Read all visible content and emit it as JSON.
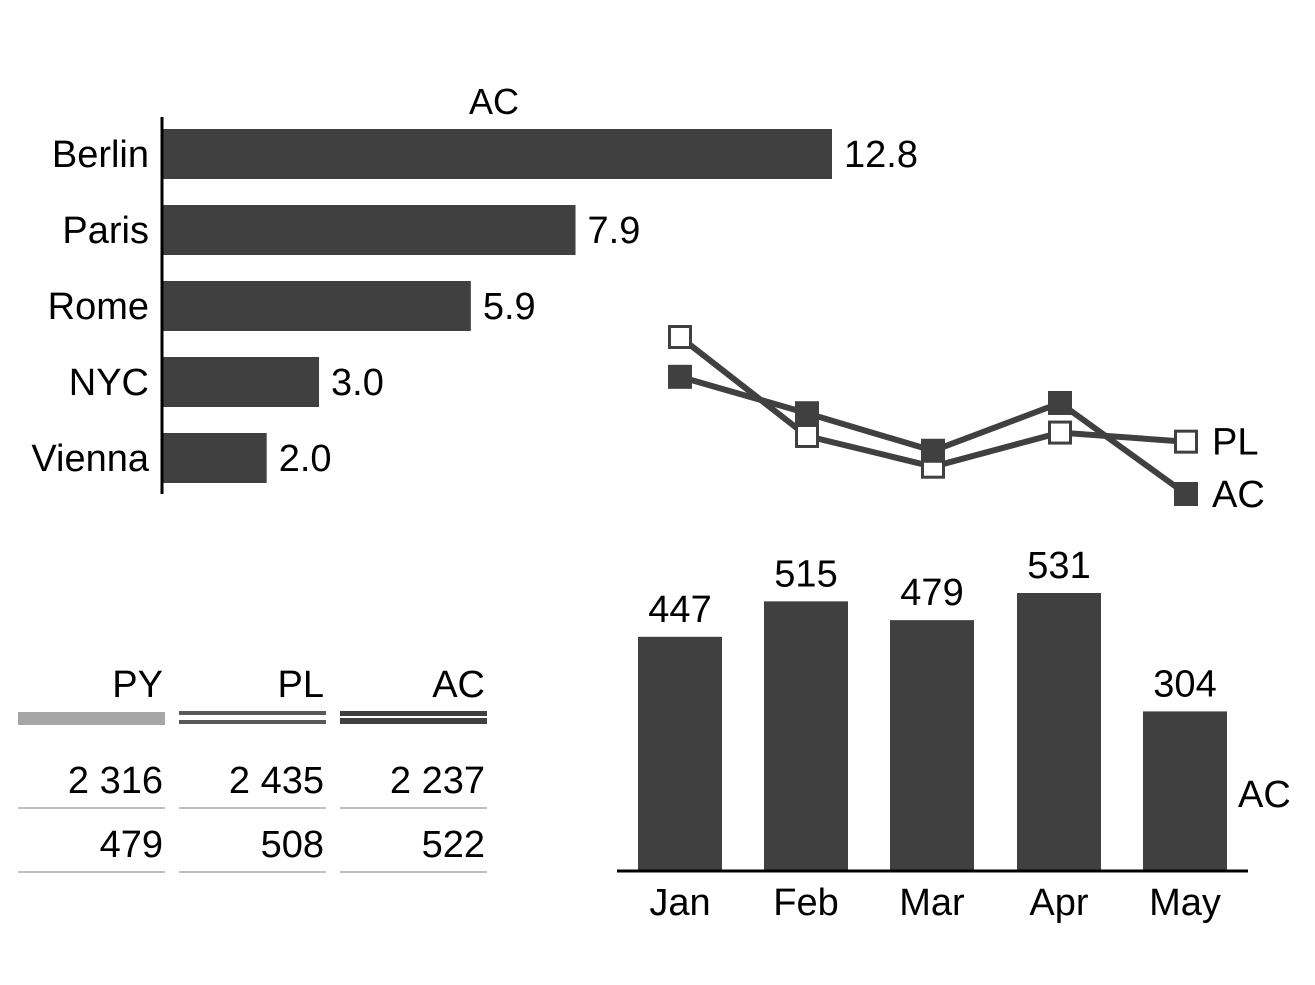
{
  "colors": {
    "bar": "#404040",
    "text": "#000000",
    "py_header_line": "#a6a6a6",
    "pl_header_line": "#595959",
    "ac_header_line": "#404040",
    "row_divider": "#bfbfbf",
    "axis": "#000000",
    "marker_fill_plan": "#ffffff"
  },
  "chart_data": [
    {
      "type": "bar",
      "orientation": "horizontal",
      "title": "AC",
      "categories": [
        "Berlin",
        "Paris",
        "Rome",
        "NYC",
        "Vienna"
      ],
      "values": [
        12.8,
        7.9,
        5.9,
        3.0,
        2.0
      ],
      "value_labels": [
        "12.8",
        "7.9",
        "5.9",
        "3.0",
        "2.0"
      ],
      "xlim": [
        0,
        12.8
      ],
      "grid": false
    },
    {
      "type": "line",
      "categories": [
        "Jan",
        "Feb",
        "Mar",
        "Apr",
        "May"
      ],
      "series": [
        {
          "name": "PL",
          "values": [
            555,
            468,
            441,
            471,
            463
          ],
          "marker": "hollow-square"
        },
        {
          "name": "AC",
          "values": [
            520,
            488,
            455,
            497,
            417
          ],
          "marker": "filled-square"
        }
      ],
      "legend": "right-end labels",
      "axis_labels": false,
      "grid": false
    },
    {
      "type": "bar",
      "orientation": "vertical",
      "categories": [
        "Jan",
        "Feb",
        "Mar",
        "Apr",
        "May"
      ],
      "series": [
        {
          "name": "AC",
          "values": [
            447,
            515,
            479,
            531,
            304
          ]
        }
      ],
      "value_labels": [
        "447",
        "515",
        "479",
        "531",
        "304"
      ],
      "ylim": [
        0,
        531
      ],
      "legend": "right",
      "grid": false
    },
    {
      "type": "table",
      "columns": [
        "PY",
        "PL",
        "AC"
      ],
      "rows": [
        [
          "2 316",
          "2 435",
          "2 237"
        ],
        [
          "479",
          "508",
          "522"
        ]
      ]
    }
  ]
}
